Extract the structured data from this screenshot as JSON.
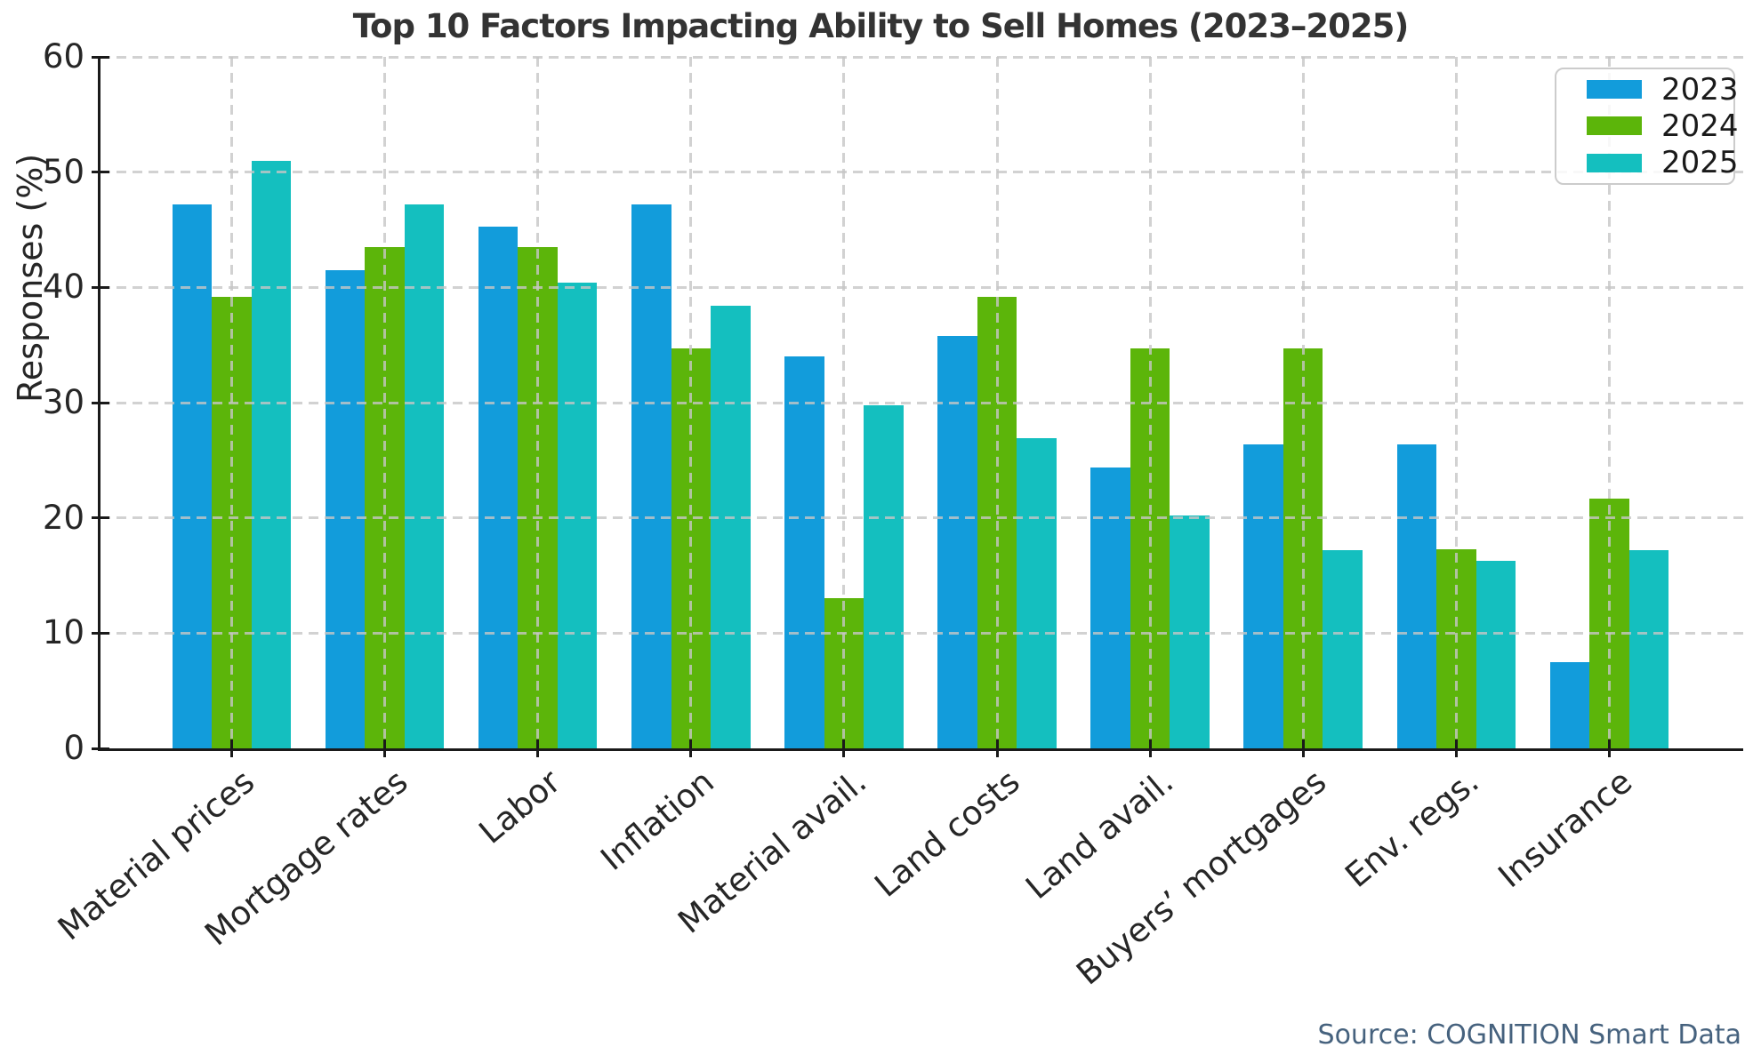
{
  "chart_data": {
    "type": "bar",
    "title": "Top 10 Factors Impacting Ability to Sell Homes (2023–2025)",
    "ylabel": "Responses (%)",
    "xlabel": "",
    "ylim": [
      0,
      60
    ],
    "yticks": [
      0,
      10,
      20,
      30,
      40,
      50,
      60
    ],
    "grid": true,
    "grid_style": "dashed",
    "legend_position": "upper right",
    "categories": [
      "Material prices",
      "Mortgage rates",
      "Labor",
      "Inflation",
      "Material avail.",
      "Land costs",
      "Land avail.",
      "Buyers’ mortgages",
      "Env. regs.",
      "Insurance"
    ],
    "series": [
      {
        "name": "2023",
        "color": "#129CDB",
        "values": [
          47.2,
          41.5,
          45.3,
          47.2,
          34.0,
          35.8,
          24.4,
          26.4,
          26.4,
          7.5
        ]
      },
      {
        "name": "2024",
        "color": "#5CB50A",
        "values": [
          39.2,
          43.5,
          43.5,
          34.7,
          13.0,
          39.2,
          34.7,
          34.7,
          17.3,
          21.7
        ]
      },
      {
        "name": "2025",
        "color": "#14BFBF",
        "values": [
          51.0,
          47.2,
          40.4,
          38.4,
          29.8,
          26.9,
          20.2,
          17.2,
          16.3,
          17.2
        ]
      }
    ]
  },
  "source_note": "Source: COGNITION Smart Data",
  "colors": {
    "axis": "#1a1a1a",
    "grid": "#c6c6c6",
    "title_text": "#333333",
    "tick_text": "#262626",
    "source_text": "#46627e"
  }
}
